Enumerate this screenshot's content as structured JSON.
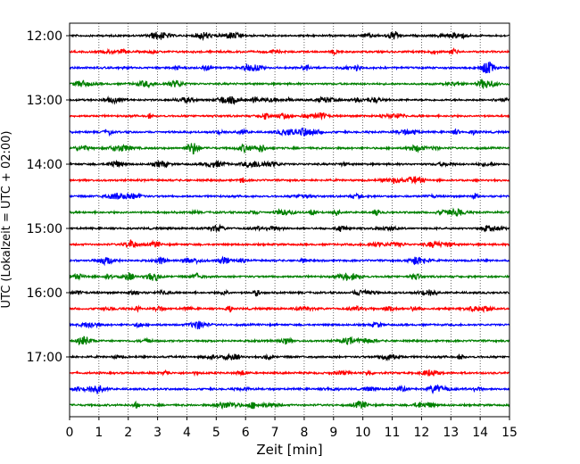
{
  "chart_data": {
    "type": "line",
    "title": "",
    "xlabel": "Zeit  [min]",
    "ylabel": "UTC (Lokalzeit = UTC + 02:00)",
    "xlim": [
      0,
      15
    ],
    "xticks": [
      "0",
      "1",
      "2",
      "3",
      "4",
      "5",
      "6",
      "7",
      "8",
      "9",
      "10",
      "11",
      "12",
      "13",
      "14",
      "15"
    ],
    "yticks": [
      "12:00",
      "13:00",
      "14:00",
      "15:00",
      "16:00",
      "17:00"
    ],
    "grid": "vertical dotted",
    "trace_interval_min": 15,
    "trace_start": "12:00",
    "trace_count": 24,
    "trace_colors": [
      "#000000",
      "#ff0000",
      "#0000ff",
      "#008000"
    ]
  }
}
